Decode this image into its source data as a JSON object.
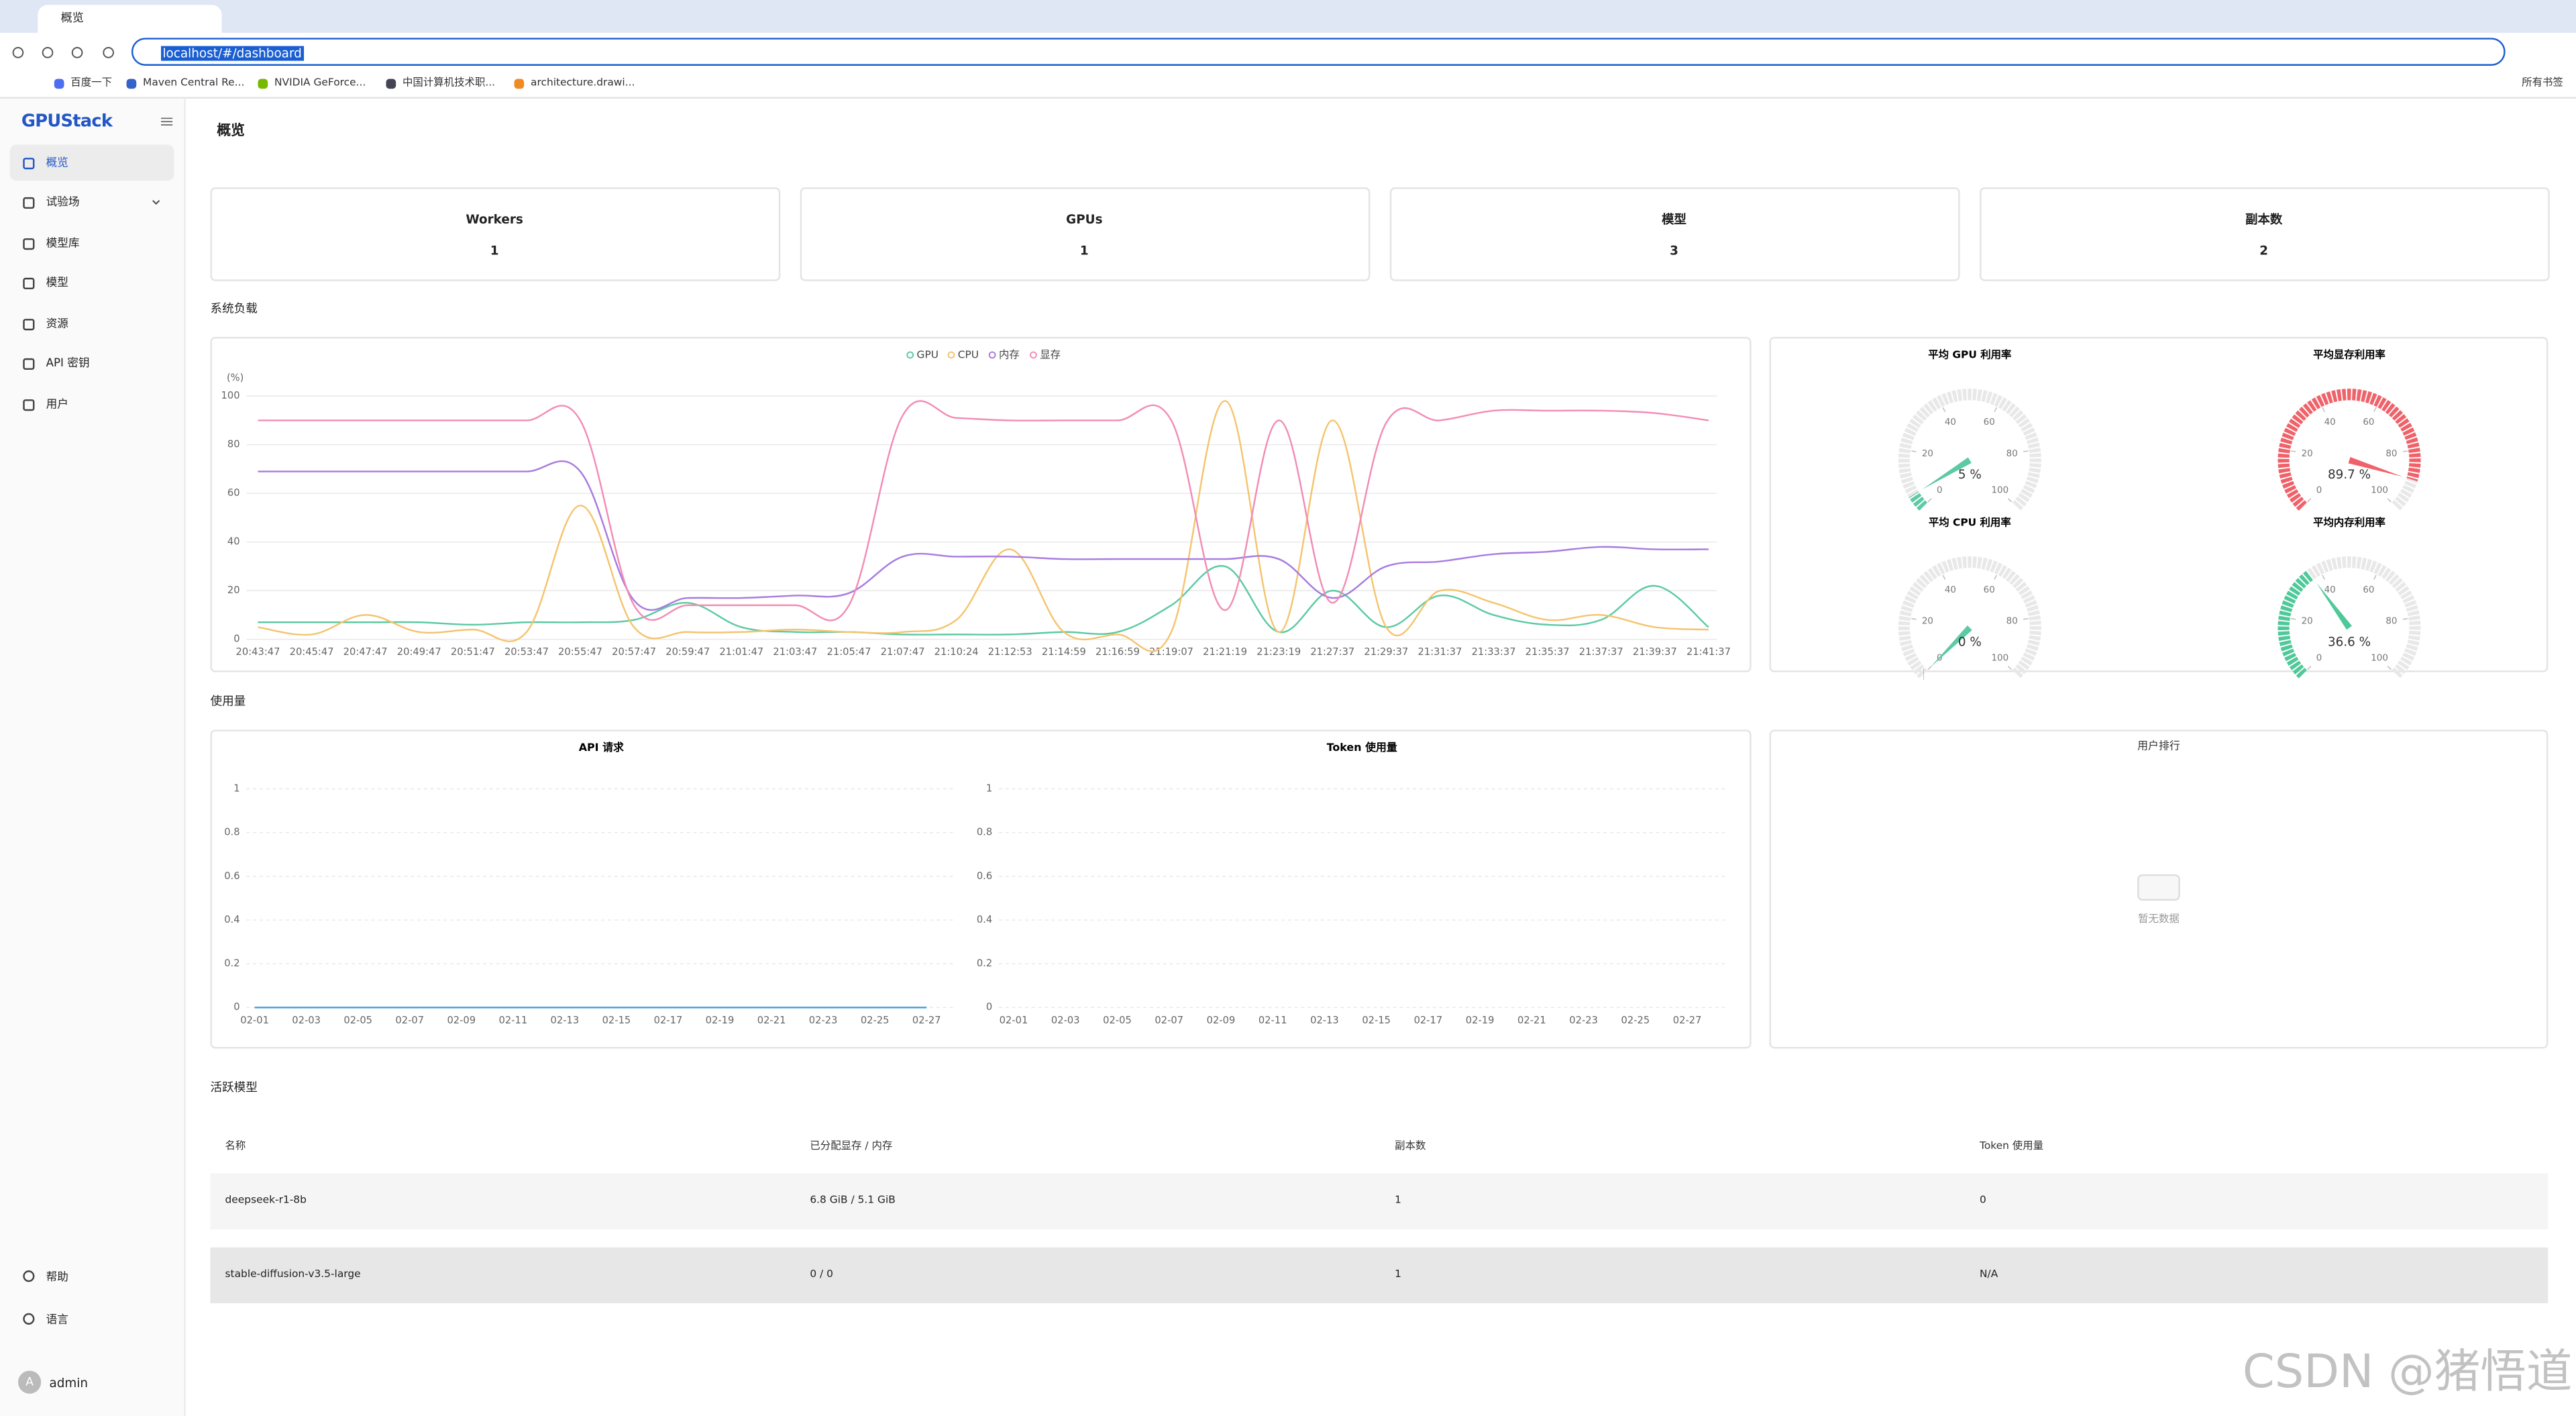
{
  "browser": {
    "tab_title": "概览",
    "url": "localhost/#/dashboard",
    "bookmarks": [
      "百度一下",
      "Maven Central Re...",
      "NVIDIA GeForce...",
      "中国计算机技术职...",
      "architecture.drawi..."
    ],
    "all_bookmarks": "所有书签"
  },
  "sidebar": {
    "logo": "GPUStack",
    "nav": [
      "概览",
      "试验场",
      "模型库",
      "模型",
      "资源",
      "API 密钥",
      "用户"
    ],
    "footer": [
      "帮助",
      "语言"
    ],
    "user": {
      "avatar": "A",
      "name": "admin"
    }
  },
  "page_title": "概览",
  "stats": [
    {
      "label": "Workers",
      "value": 1
    },
    {
      "label": "GPUs",
      "value": 1
    },
    {
      "label": "模型",
      "value": 3
    },
    {
      "label": "副本数",
      "value": 2
    }
  ],
  "sections": {
    "load": "系统负载",
    "usage": "使用量",
    "active": "活跃模型"
  },
  "chart_data": [
    {
      "type": "line",
      "y_unit": "(%)",
      "ylim": [
        0,
        100
      ],
      "yticks": [
        0,
        20,
        40,
        60,
        80,
        100
      ],
      "grid": true,
      "categories": [
        "20:43:47",
        "20:45:47",
        "20:47:47",
        "20:49:47",
        "20:51:47",
        "20:53:47",
        "20:55:47",
        "20:57:47",
        "20:59:47",
        "21:01:47",
        "21:03:47",
        "21:05:47",
        "21:07:47",
        "21:10:24",
        "21:12:53",
        "21:14:59",
        "21:16:59",
        "21:19:07",
        "21:21:19",
        "21:23:19",
        "21:27:37",
        "21:29:37",
        "21:31:37",
        "21:33:37",
        "21:35:37",
        "21:37:37",
        "21:39:37",
        "21:41:37"
      ],
      "series": [
        {
          "name": "GPU",
          "color": "#5ccaa3",
          "values": [
            7,
            7,
            7,
            7,
            6,
            7,
            7,
            8,
            15,
            5,
            3,
            3,
            2,
            2,
            2,
            3,
            3,
            14,
            30,
            3,
            20,
            5,
            18,
            10,
            6,
            8,
            22,
            5
          ]
        },
        {
          "name": "CPU",
          "color": "#f5c46e",
          "values": [
            5,
            2,
            10,
            3,
            4,
            3,
            55,
            5,
            3,
            3,
            4,
            3,
            3,
            8,
            37,
            3,
            2,
            3,
            98,
            3,
            90,
            5,
            20,
            15,
            8,
            10,
            5,
            4
          ]
        },
        {
          "name": "内存",
          "color": "#a77be0",
          "values": [
            69,
            69,
            69,
            69,
            69,
            69,
            69,
            16,
            17,
            17,
            18,
            19,
            34,
            34,
            34,
            33,
            33,
            33,
            33,
            33,
            17,
            30,
            32,
            35,
            36,
            38,
            37,
            37
          ]
        },
        {
          "name": "显存",
          "color": "#f28cb5",
          "values": [
            90,
            90,
            90,
            90,
            90,
            90,
            90,
            14,
            14,
            14,
            14,
            14,
            92,
            91,
            90,
            90,
            90,
            90,
            12,
            90,
            15,
            89,
            90,
            94,
            94,
            94,
            93,
            90
          ]
        }
      ]
    },
    {
      "type": "gauge",
      "title": "平均 GPU 利用率",
      "value": 5,
      "value_label": "5 %",
      "range": [
        0,
        100
      ],
      "ticks": [
        0,
        20,
        40,
        60,
        80,
        100
      ],
      "color": "#5ccaa3"
    },
    {
      "type": "gauge",
      "title": "平均显存利用率",
      "value": 89.7,
      "value_label": "89.7 %",
      "range": [
        0,
        100
      ],
      "ticks": [
        0,
        20,
        40,
        60,
        80,
        100
      ],
      "color": "#f0626a"
    },
    {
      "type": "gauge",
      "title": "平均 CPU 利用率",
      "value": 0,
      "value_label": "0 %",
      "range": [
        0,
        100
      ],
      "ticks": [
        0,
        20,
        40,
        60,
        80,
        100
      ],
      "color": "#5ccaa3"
    },
    {
      "type": "gauge",
      "title": "平均内存利用率",
      "value": 36.6,
      "value_label": "36.6 %",
      "range": [
        0,
        100
      ],
      "ticks": [
        0,
        20,
        40,
        60,
        80,
        100
      ],
      "color": "#4fc99a"
    },
    {
      "type": "line",
      "title": "API 请求",
      "ylim": [
        0,
        1
      ],
      "yticks": [
        0,
        0.2,
        0.4,
        0.6,
        0.8,
        1
      ],
      "grid": true,
      "categories": [
        "02-01",
        "02-03",
        "02-05",
        "02-07",
        "02-09",
        "02-11",
        "02-13",
        "02-15",
        "02-17",
        "02-19",
        "02-21",
        "02-23",
        "02-25",
        "02-27"
      ],
      "series": [
        {
          "color": "#4aa3df",
          "values": [
            0,
            0,
            0,
            0,
            0,
            0,
            0,
            0,
            0,
            0,
            0,
            0,
            0,
            0
          ]
        }
      ]
    },
    {
      "type": "line",
      "title": "Token 使用量",
      "ylim": [
        0,
        1
      ],
      "yticks": [
        0,
        0.2,
        0.4,
        0.6,
        0.8,
        1
      ],
      "grid": true,
      "categories": [
        "02-01",
        "02-03",
        "02-05",
        "02-07",
        "02-09",
        "02-11",
        "02-13",
        "02-15",
        "02-17",
        "02-19",
        "02-21",
        "02-23",
        "02-25",
        "02-27"
      ],
      "series": []
    }
  ],
  "user_rank": {
    "title": "用户排行",
    "empty": "暂无数据"
  },
  "table": {
    "headers": [
      "名称",
      "已分配显存 / 内存",
      "副本数",
      "Token 使用量"
    ],
    "rows": [
      [
        "deepseek-r1-8b",
        "6.8 GiB / 5.1 GiB",
        "1",
        "0"
      ],
      [
        "stable-diffusion-v3.5-large",
        "0 / 0",
        "1",
        "N/A"
      ]
    ]
  },
  "watermark": "CSDN @猪悟道"
}
